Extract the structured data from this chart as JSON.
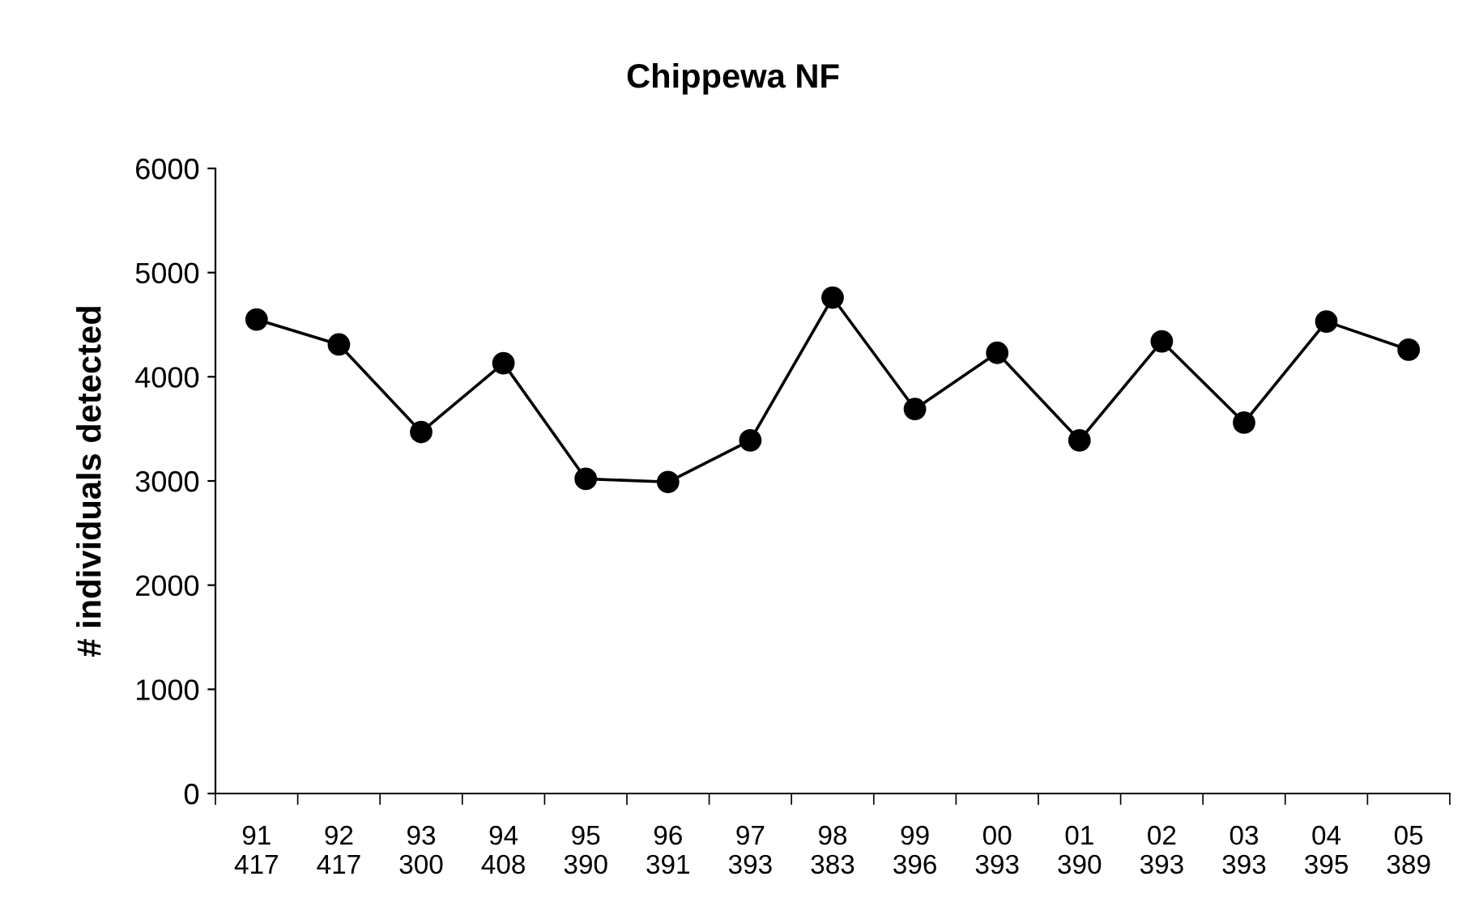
{
  "chart_data": {
    "type": "line",
    "title": "Chippewa NF",
    "ylabel": "# individuals detected",
    "categories": [
      "91\n417",
      "92\n417",
      "93\n300",
      "94\n408",
      "95\n390",
      "96\n391",
      "97\n393",
      "98\n383",
      "99\n396",
      "00\n393",
      "01\n390",
      "02\n393",
      "03\n393",
      "04\n395",
      "05\n389"
    ],
    "series": [
      {
        "color": "#000000",
        "values": [
          4550,
          4310,
          3470,
          4130,
          3020,
          2990,
          3390,
          4760,
          3690,
          4230,
          3390,
          4340,
          3560,
          4530,
          4260
        ]
      }
    ],
    "ylim": [
      0,
      6000
    ],
    "yticks": [
      0,
      1000,
      2000,
      3000,
      4000,
      5000,
      6000
    ],
    "grid": false,
    "marker": "circle",
    "line_style": "solid"
  }
}
